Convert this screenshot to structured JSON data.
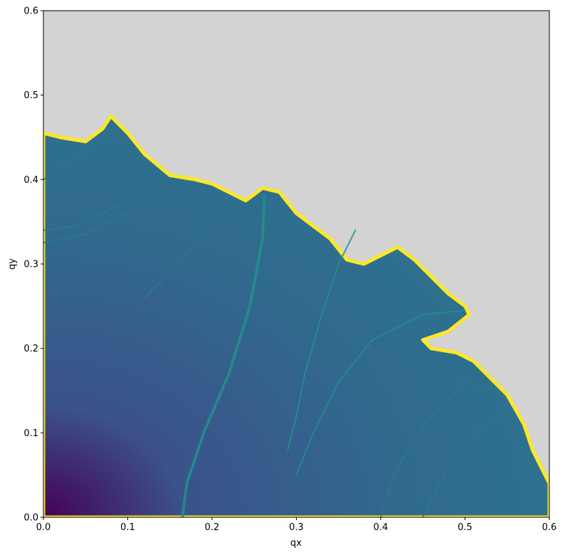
{
  "chart_data": {
    "type": "heatmap",
    "title": "",
    "xlabel": "qx",
    "ylabel": "qy",
    "xlim": [
      0.0,
      0.6
    ],
    "ylim": [
      0.0,
      0.6
    ],
    "xticks": [
      "0.0",
      "0.1",
      "0.2",
      "0.3",
      "0.4",
      "0.5",
      "0.6"
    ],
    "yticks": [
      "0.0",
      "0.1",
      "0.2",
      "0.3",
      "0.4",
      "0.5",
      "0.6"
    ],
    "xtick_values": [
      0.0,
      0.1,
      0.2,
      0.3,
      0.4,
      0.5,
      0.6
    ],
    "ytick_values": [
      0.0,
      0.1,
      0.2,
      0.3,
      0.4,
      0.5,
      0.6
    ],
    "grid": false,
    "colormap": "viridis",
    "background_color": "#d3d3d3",
    "colors": {
      "low": "#440154",
      "mid_dark": "#3b528b",
      "mid": "#31688e",
      "mid_light": "#2a788e",
      "teal": "#21918c",
      "green": "#35b779",
      "high": "#fde725"
    },
    "boundary": [
      [
        0.0,
        0.455
      ],
      [
        0.02,
        0.45
      ],
      [
        0.05,
        0.445
      ],
      [
        0.07,
        0.46
      ],
      [
        0.08,
        0.475
      ],
      [
        0.1,
        0.455
      ],
      [
        0.12,
        0.43
      ],
      [
        0.15,
        0.405
      ],
      [
        0.18,
        0.4
      ],
      [
        0.2,
        0.395
      ],
      [
        0.22,
        0.385
      ],
      [
        0.24,
        0.375
      ],
      [
        0.26,
        0.39
      ],
      [
        0.28,
        0.385
      ],
      [
        0.3,
        0.36
      ],
      [
        0.32,
        0.345
      ],
      [
        0.34,
        0.33
      ],
      [
        0.36,
        0.305
      ],
      [
        0.38,
        0.3
      ],
      [
        0.4,
        0.31
      ],
      [
        0.42,
        0.32
      ],
      [
        0.44,
        0.305
      ],
      [
        0.46,
        0.285
      ],
      [
        0.48,
        0.265
      ],
      [
        0.5,
        0.25
      ],
      [
        0.505,
        0.24
      ],
      [
        0.48,
        0.22
      ],
      [
        0.45,
        0.21
      ],
      [
        0.46,
        0.2
      ],
      [
        0.49,
        0.195
      ],
      [
        0.51,
        0.185
      ],
      [
        0.53,
        0.165
      ],
      [
        0.55,
        0.145
      ],
      [
        0.57,
        0.11
      ],
      [
        0.58,
        0.08
      ],
      [
        0.59,
        0.06
      ],
      [
        0.6,
        0.04
      ],
      [
        0.6,
        0.0
      ]
    ],
    "ridges": [
      [
        [
          0.165,
          0.0
        ],
        [
          0.17,
          0.04
        ],
        [
          0.19,
          0.1
        ],
        [
          0.22,
          0.17
        ],
        [
          0.245,
          0.25
        ],
        [
          0.26,
          0.33
        ],
        [
          0.262,
          0.38
        ]
      ],
      [
        [
          0.29,
          0.08
        ],
        [
          0.3,
          0.12
        ],
        [
          0.31,
          0.17
        ],
        [
          0.33,
          0.24
        ],
        [
          0.35,
          0.3
        ],
        [
          0.37,
          0.34
        ]
      ],
      [
        [
          0.3,
          0.05
        ],
        [
          0.32,
          0.1
        ],
        [
          0.35,
          0.16
        ],
        [
          0.39,
          0.21
        ],
        [
          0.45,
          0.24
        ],
        [
          0.5,
          0.245
        ]
      ],
      [
        [
          0.0,
          0.325
        ],
        [
          0.05,
          0.335
        ],
        [
          0.1,
          0.36
        ],
        [
          0.14,
          0.38
        ]
      ],
      [
        [
          0.0,
          0.34
        ],
        [
          0.04,
          0.345
        ],
        [
          0.09,
          0.37
        ],
        [
          0.13,
          0.4
        ]
      ],
      [
        [
          0.0,
          0.4
        ],
        [
          0.03,
          0.42
        ],
        [
          0.06,
          0.445
        ]
      ],
      [
        [
          0.12,
          0.26
        ],
        [
          0.16,
          0.3
        ],
        [
          0.2,
          0.35
        ],
        [
          0.22,
          0.38
        ]
      ],
      [
        [
          0.4,
          0.0
        ],
        [
          0.42,
          0.06
        ],
        [
          0.46,
          0.12
        ],
        [
          0.5,
          0.16
        ],
        [
          0.54,
          0.15
        ]
      ],
      [
        [
          0.45,
          0.0
        ],
        [
          0.47,
          0.04
        ],
        [
          0.5,
          0.09
        ],
        [
          0.54,
          0.12
        ],
        [
          0.57,
          0.1
        ]
      ]
    ]
  }
}
